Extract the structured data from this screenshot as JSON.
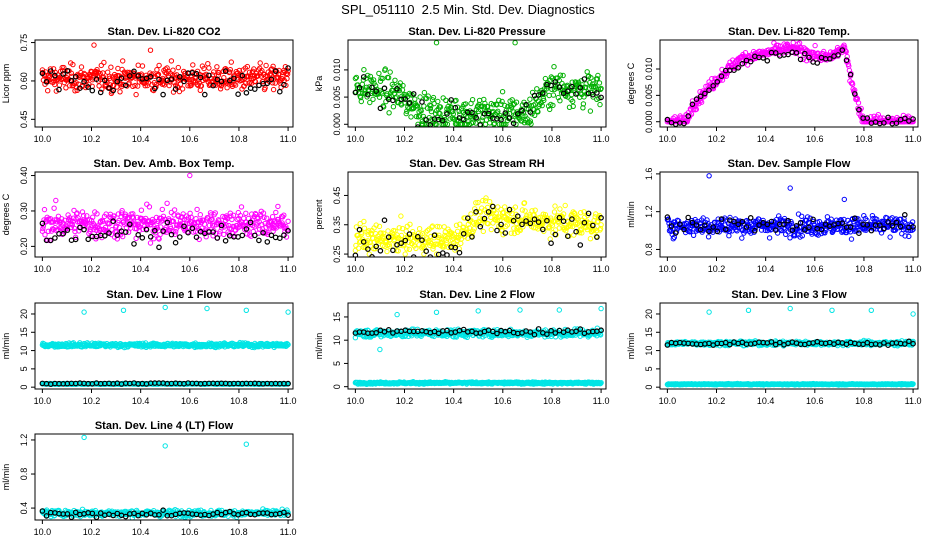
{
  "page_title": "SPL_051110  2.5 Min. Std. Dev. Diagnostics",
  "chart_data": [
    {
      "type": "scatter",
      "title": "Stan. Dev. Li-820 CO2",
      "ylabel": "Licor ppm",
      "color": "#ff0000",
      "xlim": [
        9.97,
        11.02
      ],
      "ylim": [
        0.42,
        0.76
      ],
      "xticks": [
        "10.0",
        "10.2",
        "10.4",
        "10.6",
        "10.8",
        "11.0"
      ],
      "yticks": [
        0.45,
        0.6,
        0.75
      ],
      "ytick_labels": [
        "0.45",
        "0.60",
        "0.75"
      ],
      "series": [
        {
          "level": 0.61,
          "spread": 0.035,
          "range": [
            0.43,
            0.74
          ],
          "outliers": [
            [
              10.21,
              0.74
            ],
            [
              10.44,
              0.72
            ]
          ]
        }
      ],
      "black": {
        "level": 0.6,
        "spread": 0.04
      }
    },
    {
      "type": "scatter",
      "title": "Stan. Dev. Li-820 Pressure",
      "ylabel": "kPa",
      "color": "#00b000",
      "xlim": [
        9.97,
        11.02
      ],
      "ylim": [
        -0.0005,
        0.0155
      ],
      "xticks": [
        "10.0",
        "10.2",
        "10.4",
        "10.6",
        "10.8",
        "11.0"
      ],
      "yticks": [
        0,
        0.005,
        0.01
      ],
      "ytick_labels": [
        "0.000",
        "0.005",
        "0.010"
      ],
      "series": [
        {
          "level": 0.005,
          "spread": 0.0022,
          "range": [
            0,
            0.012
          ],
          "segments": [
            [
              10.0,
              0.007
            ],
            [
              10.15,
              0.006
            ],
            [
              10.3,
              0.002
            ],
            [
              10.5,
              0.002
            ],
            [
              10.7,
              0.002
            ],
            [
              10.8,
              0.007
            ],
            [
              11.0,
              0.006
            ]
          ],
          "outliers": [
            [
              10.33,
              0.015
            ],
            [
              10.65,
              0.015
            ]
          ]
        }
      ],
      "black": {
        "level": 0.004,
        "spread": 0.002
      }
    },
    {
      "type": "scatter",
      "title": "Stan. Dev. Li-820 Temp.",
      "ylabel": "degrees C",
      "color": "#ff00ff",
      "xlim": [
        9.97,
        11.02
      ],
      "ylim": [
        -0.001,
        0.0155
      ],
      "xticks": [
        "10.0",
        "10.2",
        "10.4",
        "10.6",
        "10.8",
        "11.0"
      ],
      "yticks": [
        0,
        0.005,
        0.01
      ],
      "ytick_labels": [
        "0.000",
        "0.005",
        "0.010"
      ],
      "series": [
        {
          "level": 0.0,
          "spread": 0.0008,
          "range": [
            0,
            0.015
          ],
          "segments": [
            [
              10.0,
              0.0
            ],
            [
              10.08,
              0.0
            ],
            [
              10.1,
              0.003
            ],
            [
              10.2,
              0.008
            ],
            [
              10.3,
              0.012
            ],
            [
              10.5,
              0.014
            ],
            [
              10.65,
              0.012
            ],
            [
              10.72,
              0.014
            ],
            [
              10.77,
              0.004
            ],
            [
              10.8,
              0.0
            ],
            [
              11.0,
              0.0
            ]
          ]
        }
      ],
      "black": {
        "level": 0.0,
        "spread": 0.0006
      }
    },
    {
      "type": "scatter",
      "title": "Stan. Dev. Amb. Box Temp.",
      "ylabel": "degrees C",
      "color": "#ff00ff",
      "xlim": [
        9.97,
        11.02
      ],
      "ylim": [
        0.17,
        0.41
      ],
      "xticks": [
        "10.0",
        "10.2",
        "10.4",
        "10.6",
        "10.8",
        "11.0"
      ],
      "yticks": [
        0.2,
        0.3,
        0.4
      ],
      "ytick_labels": [
        "0.20",
        "0.30",
        "0.40"
      ],
      "series": [
        {
          "level": 0.265,
          "spread": 0.03,
          "range": [
            0.18,
            0.39
          ],
          "outliers": [
            [
              10.6,
              0.4
            ]
          ]
        }
      ],
      "black": {
        "level": 0.235,
        "spread": 0.02
      }
    },
    {
      "type": "scatter",
      "title": "Stan. Dev. Gas Stream RH",
      "ylabel": "percent",
      "color": "#ffff00",
      "xlim": [
        9.97,
        11.02
      ],
      "ylim": [
        0.24,
        0.53
      ],
      "xticks": [
        "10.0",
        "10.2",
        "10.4",
        "10.6",
        "10.8",
        "11.0"
      ],
      "yticks": [
        0.25,
        0.35,
        0.45
      ],
      "ytick_labels": [
        "0.25",
        "0.35",
        "0.45"
      ],
      "series": [
        {
          "level": 0.33,
          "spread": 0.035,
          "range": [
            0.25,
            0.5
          ],
          "segments": [
            [
              10.0,
              0.3
            ],
            [
              10.4,
              0.3
            ],
            [
              10.5,
              0.38
            ],
            [
              11.0,
              0.35
            ]
          ]
        }
      ],
      "black": {
        "level": 0.32,
        "spread": 0.04
      }
    },
    {
      "type": "scatter",
      "title": "Stan. Dev. Sample Flow",
      "ylabel": "ml/min",
      "color": "#0000ff",
      "xlim": [
        9.97,
        11.02
      ],
      "ylim": [
        0.72,
        1.62
      ],
      "xticks": [
        "10.0",
        "10.2",
        "10.4",
        "10.6",
        "10.8",
        "11.0"
      ],
      "yticks": [
        0.8,
        1.2,
        1.6
      ],
      "ytick_labels": [
        "0.8",
        "1.2",
        "1.6"
      ],
      "series": [
        {
          "level": 1.05,
          "spread": 0.07,
          "range": [
            0.8,
            1.3
          ],
          "outliers": [
            [
              10.17,
              1.58
            ],
            [
              10.5,
              1.45
            ],
            [
              10.72,
              1.33
            ]
          ]
        }
      ],
      "black": {
        "level": 1.05,
        "spread": 0.06
      }
    },
    {
      "type": "scatter",
      "title": "Stan. Dev. Line 1 Flow",
      "ylabel": "ml/min",
      "color": "#00e5e5",
      "xlim": [
        9.97,
        11.02
      ],
      "ylim": [
        -0.5,
        23
      ],
      "xticks": [
        "10.0",
        "10.2",
        "10.4",
        "10.6",
        "10.8",
        "11.0"
      ],
      "yticks": [
        0,
        5,
        10,
        15,
        20
      ],
      "ytick_labels": [
        "0",
        "5",
        "10",
        "15",
        "20"
      ],
      "series": [
        {
          "level": 11.5,
          "spread": 0.4,
          "range": [
            10,
            13
          ]
        },
        {
          "level": 0.9,
          "spread": 0.08,
          "range": [
            0.5,
            1.4
          ]
        }
      ],
      "outliers": [
        [
          10.17,
          20.5
        ],
        [
          10.33,
          21
        ],
        [
          10.5,
          21.8
        ],
        [
          10.67,
          21.5
        ],
        [
          10.83,
          21
        ],
        [
          11.0,
          20.5
        ]
      ],
      "black": {
        "level": 1.0,
        "spread": 0.08
      }
    },
    {
      "type": "scatter",
      "title": "Stan. Dev. Line 2 Flow",
      "ylabel": "ml/min",
      "color": "#00e5e5",
      "xlim": [
        9.97,
        11.02
      ],
      "ylim": [
        -0.5,
        18
      ],
      "xticks": [
        "10.0",
        "10.2",
        "10.4",
        "10.6",
        "10.8",
        "11.0"
      ],
      "yticks": [
        0,
        5,
        10,
        15
      ],
      "ytick_labels": [
        "0",
        "5",
        "10",
        "15"
      ],
      "series": [
        {
          "level": 11.5,
          "spread": 0.6,
          "range": [
            8,
            13
          ]
        },
        {
          "level": 0.8,
          "spread": 0.15,
          "range": [
            0.3,
            1.3
          ]
        }
      ],
      "outliers": [
        [
          10.1,
          8
        ],
        [
          10.17,
          15.5
        ],
        [
          10.33,
          16
        ],
        [
          10.5,
          16.3
        ],
        [
          10.67,
          16.5
        ],
        [
          10.83,
          16.5
        ],
        [
          11.0,
          16.8
        ]
      ],
      "black": {
        "level": 11.8,
        "spread": 0.35
      }
    },
    {
      "type": "scatter",
      "title": "Stan. Dev. Line 3 Flow",
      "ylabel": "ml/min",
      "color": "#00e5e5",
      "xlim": [
        9.97,
        11.02
      ],
      "ylim": [
        -0.5,
        23
      ],
      "xticks": [
        "10.0",
        "10.2",
        "10.4",
        "10.6",
        "10.8",
        "11.0"
      ],
      "yticks": [
        0,
        5,
        10,
        15,
        20
      ],
      "ytick_labels": [
        "0",
        "5",
        "10",
        "15",
        "20"
      ],
      "series": [
        {
          "level": 12.0,
          "spread": 0.4,
          "range": [
            9,
            14
          ]
        },
        {
          "level": 0.8,
          "spread": 0.1,
          "range": [
            0.3,
            1.2
          ]
        }
      ],
      "outliers": [
        [
          10.17,
          20.5
        ],
        [
          10.33,
          21
        ],
        [
          10.5,
          21.5
        ],
        [
          10.67,
          21
        ],
        [
          10.83,
          21
        ],
        [
          11.0,
          20
        ]
      ],
      "black": {
        "level": 12.0,
        "spread": 0.35
      }
    },
    {
      "type": "scatter",
      "title": "Stan. Dev. Line 4 (LT) Flow",
      "ylabel": "ml/min",
      "color": "#00e5e5",
      "xlim": [
        9.97,
        11.02
      ],
      "ylim": [
        0.26,
        1.27
      ],
      "xticks": [
        "10.0",
        "10.2",
        "10.4",
        "10.6",
        "10.8",
        "11.0"
      ],
      "yticks": [
        0.4,
        0.8,
        1.2
      ],
      "ytick_labels": [
        "0.4",
        "0.8",
        "1.2"
      ],
      "series": [
        {
          "level": 0.34,
          "spread": 0.025,
          "range": [
            0.28,
            0.45
          ]
        }
      ],
      "outliers": [
        [
          10.17,
          1.23
        ],
        [
          10.5,
          1.13
        ],
        [
          10.83,
          1.15
        ]
      ],
      "black": {
        "level": 0.33,
        "spread": 0.02
      }
    }
  ]
}
